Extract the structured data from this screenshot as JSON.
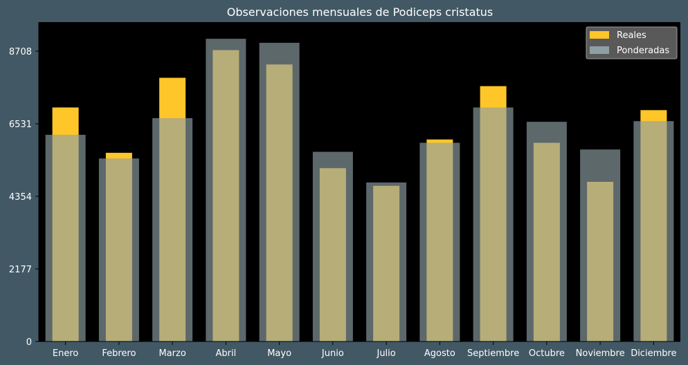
{
  "chart_data": {
    "type": "bar",
    "title": "Observaciones mensuales de Podiceps cristatus",
    "categories": [
      "Enero",
      "Febrero",
      "Marzo",
      "Abril",
      "Mayo",
      "Junio",
      "Julio",
      "Agosto",
      "Septiembre",
      "Octubre",
      "Noviembre",
      "Diciembre"
    ],
    "series": [
      {
        "name": "Reales",
        "color": "#ffc629",
        "values": [
          7020,
          5660,
          7910,
          8740,
          8310,
          5200,
          4670,
          6060,
          7660,
          5960,
          4790,
          6940
        ]
      },
      {
        "name": "Ponderadas",
        "color": "#8fa0a5",
        "values": [
          6200,
          5490,
          6700,
          9080,
          8960,
          5690,
          4770,
          5960,
          7020,
          6590,
          5760,
          6610
        ]
      }
    ],
    "yticks": [
      0,
      2177,
      4354,
      6531,
      8708
    ],
    "ylim": [
      0,
      9580
    ],
    "legend_position": "top-right",
    "grid": false
  }
}
